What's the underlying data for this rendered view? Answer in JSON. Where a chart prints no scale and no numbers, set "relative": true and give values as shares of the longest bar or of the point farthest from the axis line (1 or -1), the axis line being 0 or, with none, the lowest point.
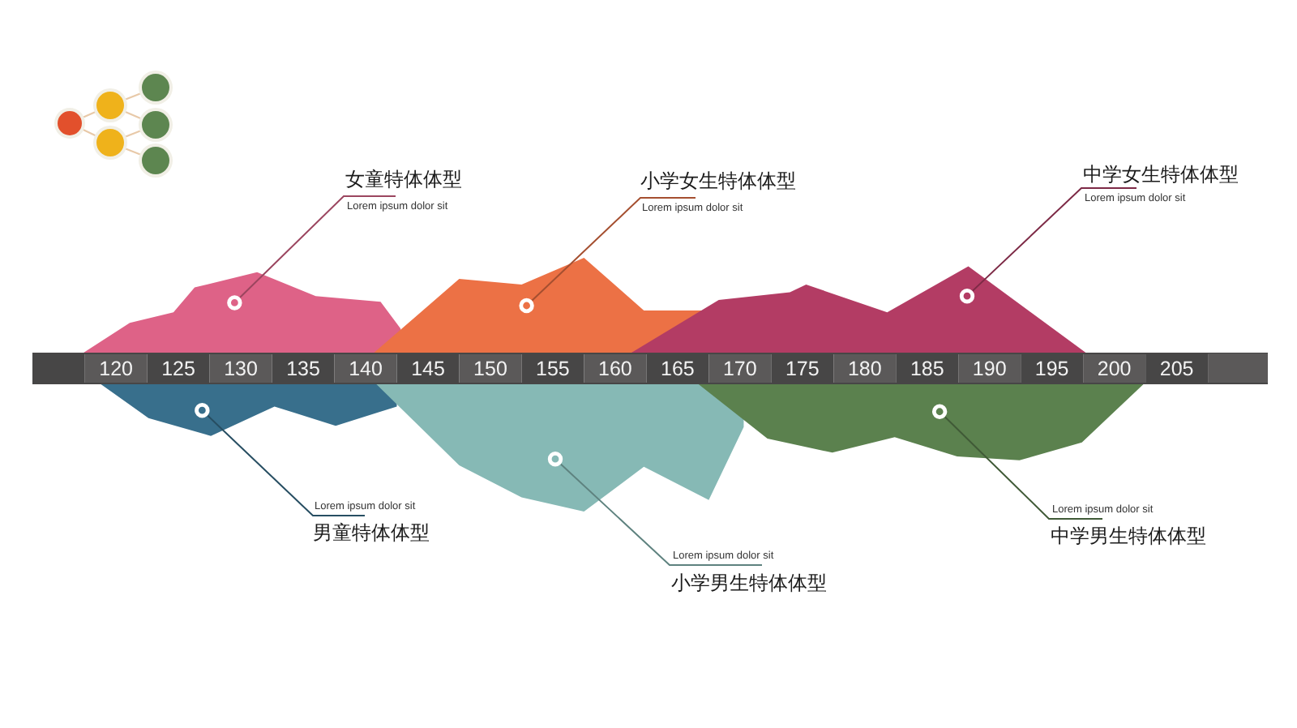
{
  "chart_data": [
    {
      "type": "area",
      "relative": true,
      "xlim": [
        113.3,
        212.3
      ],
      "xticks": [
        120,
        125,
        130,
        135,
        140,
        145,
        150,
        155,
        160,
        165,
        170,
        175,
        180,
        185,
        190,
        195,
        200,
        205
      ],
      "series": [
        {
          "name": "女童特体体型",
          "color": "#de6287",
          "x": [
            117.3,
            121.1,
            124.6,
            126.3,
            131.3,
            136.0,
            141.2,
            142.8
          ],
          "values": [
            0,
            0.32,
            0.43,
            0.69,
            0.85,
            0.6,
            0.54,
            0.26
          ]
        },
        {
          "name": "小学女生特体体型",
          "color": "#ec7145",
          "x": [
            140.6,
            147.5,
            152.5,
            157.5,
            162.3,
            166.9
          ],
          "values": [
            0,
            0.78,
            0.72,
            1,
            0.45,
            0.45
          ]
        },
        {
          "name": "中学女生特体体型",
          "color": "#b33c64",
          "x": [
            161.2,
            168.3,
            174.0,
            175.3,
            181.8,
            188.3,
            197.8
          ],
          "values": [
            0,
            0.56,
            0.64,
            0.72,
            0.43,
            0.91,
            0
          ]
        }
      ],
      "annotations": [
        {
          "text": "Lorem ipsum dolor sit",
          "x": 129.5,
          "y": 0.53
        },
        {
          "text": "Lorem ipsum dolor sit",
          "x": 152.9,
          "y": 0.5
        },
        {
          "text": "Lorem ipsum dolor sit",
          "x": 188.2,
          "y": 0.6
        }
      ]
    },
    {
      "type": "area",
      "relative": true,
      "xlim": [
        113.3,
        212.3
      ],
      "tick_labels": false,
      "series": [
        {
          "name": "男童特体体型",
          "color": "#386f8c",
          "x": [
            118.7,
            122.6,
            127.6,
            132.7,
            137.6,
            142.5
          ],
          "values": [
            0,
            -0.27,
            -0.41,
            -0.18,
            -0.33,
            -0.18
          ]
        },
        {
          "name": "小学男生特体体型",
          "color": "#86b9b5",
          "x": [
            140.8,
            147.5,
            152.5,
            157.5,
            162.3,
            167.5,
            170.3
          ],
          "values": [
            0,
            -0.64,
            -0.89,
            -1,
            -0.65,
            -0.91,
            -0.34
          ]
        },
        {
          "name": "中学男生特体体型",
          "color": "#5b814e",
          "x": [
            166.6,
            172.2,
            177.4,
            182.4,
            187.4,
            192.4,
            197.4,
            202.4
          ],
          "values": [
            0,
            -0.43,
            -0.54,
            -0.42,
            -0.57,
            -0.6,
            -0.46,
            0
          ]
        }
      ],
      "annotations": [
        {
          "text": "Lorem ipsum dolor sit",
          "x": 126.9,
          "y": -0.21
        },
        {
          "text": "Lorem ipsum dolor sit",
          "x": 155.2,
          "y": -0.59
        },
        {
          "text": "Lorem ipsum dolor sit",
          "x": 186.0,
          "y": -0.22
        }
      ]
    }
  ]
}
